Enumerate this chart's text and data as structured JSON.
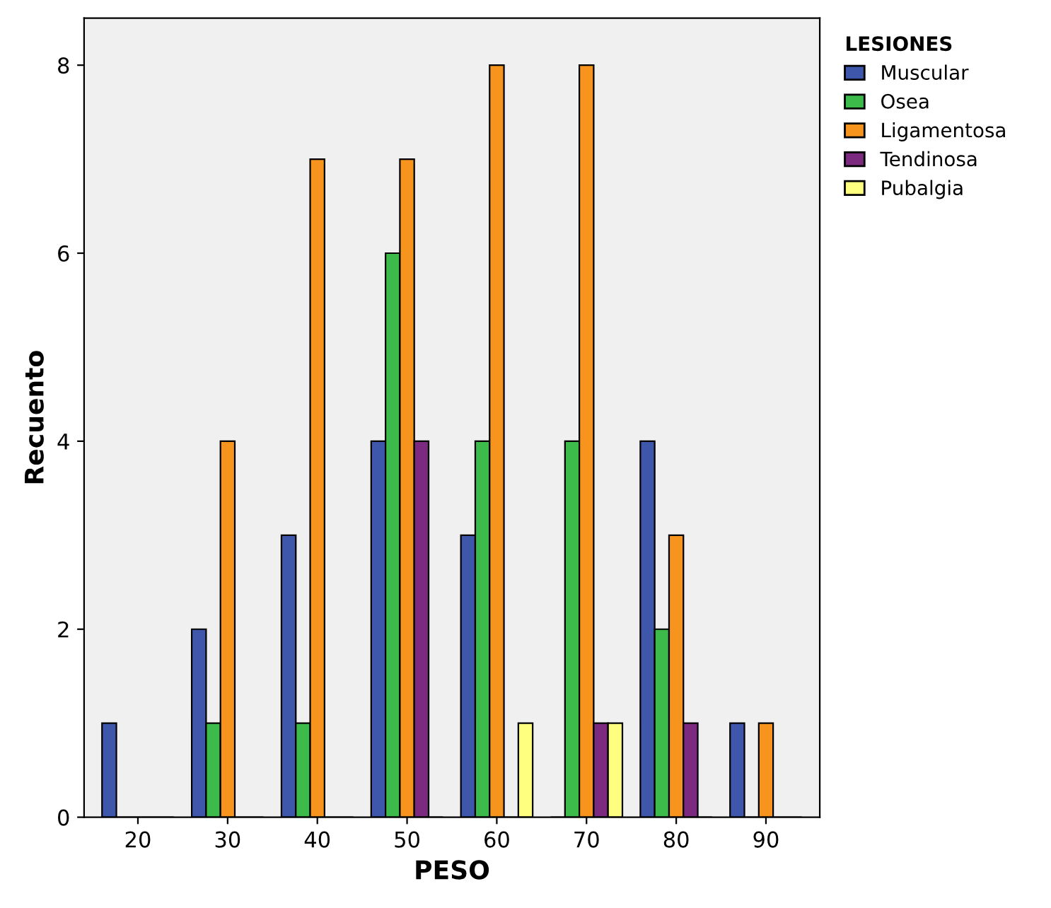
{
  "chart_data": {
    "type": "bar",
    "xlabel": "PESO",
    "ylabel": "Recuento",
    "legend_title": "LESIONES",
    "legend": "right",
    "grid": false,
    "categories": [
      "20",
      "30",
      "40",
      "50",
      "60",
      "70",
      "80",
      "90"
    ],
    "ylim": [
      0,
      8.5
    ],
    "yticks": [
      0,
      2,
      4,
      6,
      8
    ],
    "series": [
      {
        "name": "Muscular",
        "color": "#3f57ab",
        "values": [
          1,
          2,
          3,
          4,
          3,
          0,
          4,
          1
        ]
      },
      {
        "name": "Osea",
        "color": "#3dbb4a",
        "values": [
          0,
          1,
          1,
          6,
          4,
          4,
          2,
          0
        ]
      },
      {
        "name": "Ligamentosa",
        "color": "#f7941d",
        "values": [
          0,
          4,
          7,
          7,
          8,
          8,
          3,
          1
        ]
      },
      {
        "name": "Tendinosa",
        "color": "#7c2a7f",
        "values": [
          0,
          0,
          0,
          4,
          0,
          1,
          1,
          0
        ]
      },
      {
        "name": "Pubalgia",
        "color": "#ffff7f",
        "values": [
          0,
          0,
          0,
          0,
          1,
          1,
          0,
          0
        ]
      }
    ]
  }
}
